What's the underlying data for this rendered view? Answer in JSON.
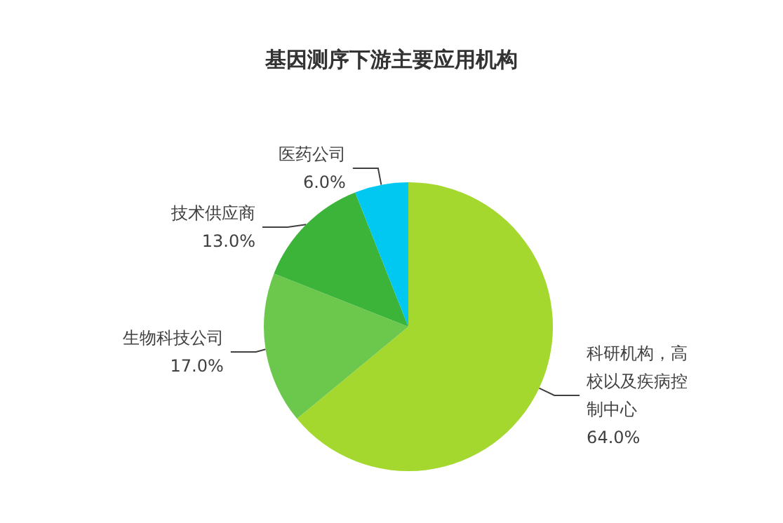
{
  "chart_data": {
    "type": "pie",
    "title": "基因测序下游主要应用机构",
    "categories": [
      "科研机构，高校以及疾病控制中心",
      "生物科技公司",
      "技术供应商",
      "医药公司"
    ],
    "values": [
      64.0,
      17.0,
      13.0,
      6.0
    ],
    "value_labels": [
      "64.0%",
      "17.0%",
      "13.0%",
      "6.0%"
    ],
    "colors": [
      "#a4d82e",
      "#6cc84c",
      "#3cb43a",
      "#00c8f0"
    ]
  }
}
